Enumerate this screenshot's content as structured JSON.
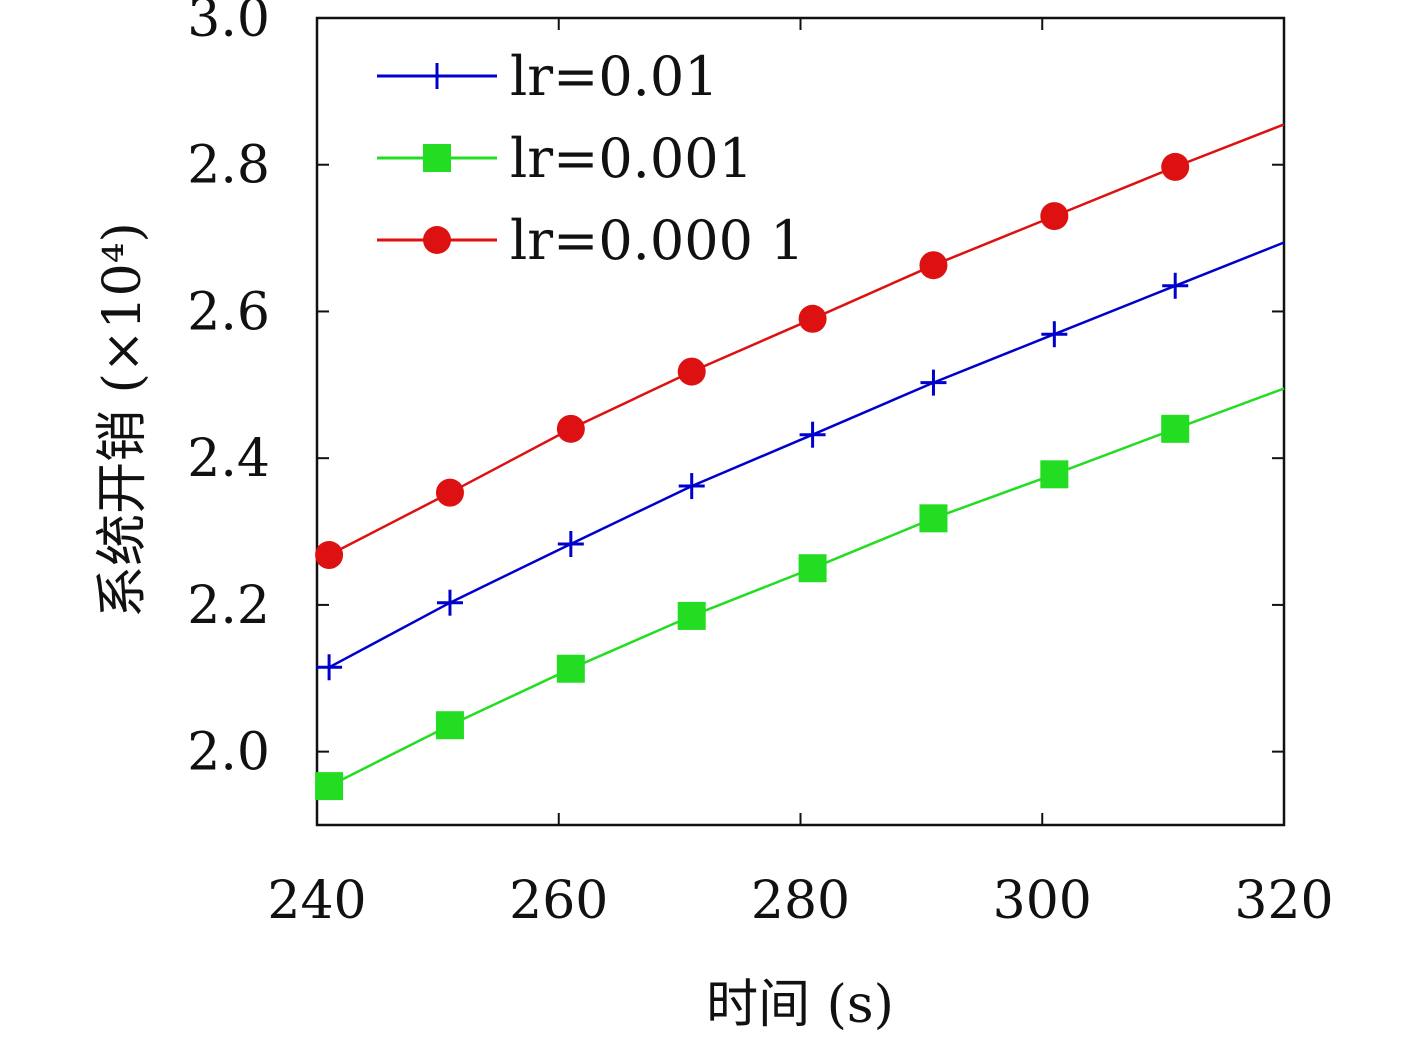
{
  "chart_data": {
    "type": "line",
    "xlabel": "时间 (s)",
    "ylabel": "系统开销 (×10⁴)",
    "xlim": [
      240,
      320
    ],
    "ylim": [
      1.9,
      3.0
    ],
    "x_ticks": [
      "240",
      "260",
      "280",
      "300",
      "320"
    ],
    "y_ticks": [
      "2.0",
      "2.2",
      "2.4",
      "2.6",
      "2.8",
      "3.0"
    ],
    "grid": false,
    "legend_position": "top-left",
    "x": [
      241,
      251,
      261,
      271,
      281,
      291,
      301,
      311,
      320
    ],
    "series": [
      {
        "name": "lr=0.01",
        "color": "#0000cc",
        "marker": "plus",
        "values": [
          2.115,
          2.203,
          2.283,
          2.362,
          2.432,
          2.503,
          2.569,
          2.635,
          2.694
        ]
      },
      {
        "name": "lr=0.001",
        "color": "#22dd22",
        "marker": "square",
        "values": [
          1.953,
          2.036,
          2.113,
          2.185,
          2.25,
          2.318,
          2.378,
          2.44,
          2.495
        ]
      },
      {
        "name": "lr=0.000 1",
        "color": "#dd1111",
        "marker": "circle",
        "values": [
          2.268,
          2.353,
          2.44,
          2.518,
          2.59,
          2.663,
          2.73,
          2.797,
          2.855
        ]
      }
    ]
  }
}
